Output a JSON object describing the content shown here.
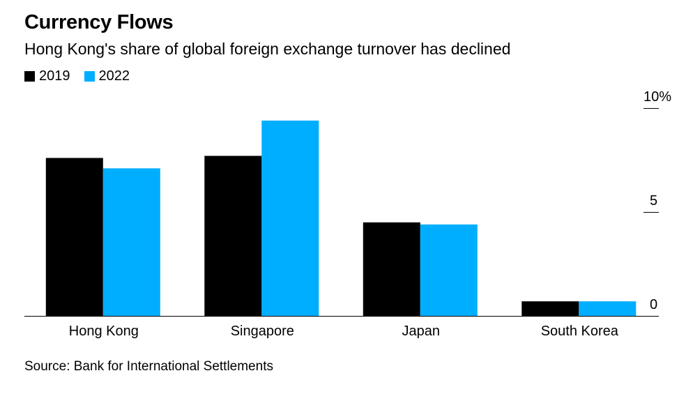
{
  "chart_data": {
    "type": "bar",
    "title": "Currency Flows",
    "subtitle": "Hong Kong's share of global foreign exchange turnover has declined",
    "categories": [
      "Hong Kong",
      "Singapore",
      "Japan",
      "South Korea"
    ],
    "series": [
      {
        "name": "2019",
        "color": "#000000",
        "values": [
          7.6,
          7.7,
          4.5,
          0.7
        ]
      },
      {
        "name": "2022",
        "color": "#00aeff",
        "values": [
          7.1,
          9.4,
          4.4,
          0.7
        ]
      }
    ],
    "ylim": [
      0,
      10
    ],
    "yticks": [
      {
        "value": 10,
        "label": "10%"
      },
      {
        "value": 5,
        "label": "5"
      },
      {
        "value": 0,
        "label": "0"
      }
    ],
    "xlabel": "",
    "ylabel": "",
    "legend_position": "top-left",
    "source": "Source: Bank for International Settlements"
  }
}
